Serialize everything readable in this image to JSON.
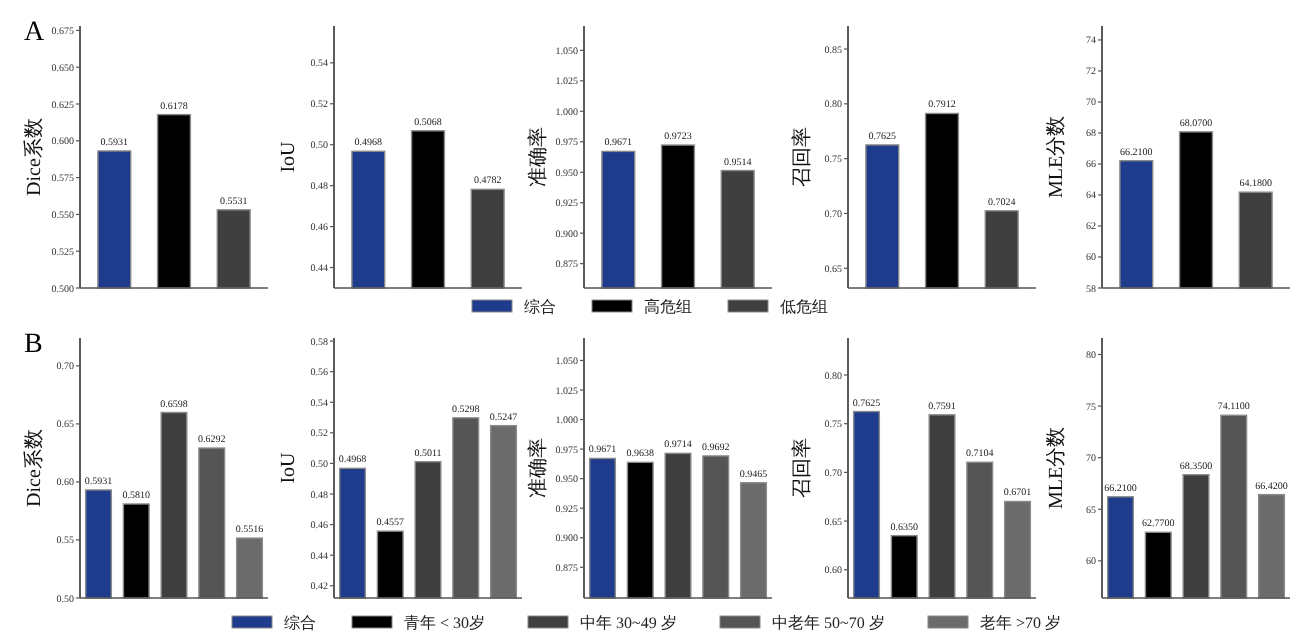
{
  "chart_data": [
    {
      "type": "bar",
      "title": "A",
      "ylabel": "Dice系数",
      "categories": [
        null
      ],
      "ylim": [
        0.5,
        0.678
      ],
      "yticks": [
        {
          "value": 0.5,
          "label": "0.500"
        },
        {
          "value": 0.525,
          "label": "0.525"
        },
        {
          "value": 0.55,
          "label": "0.550"
        },
        {
          "value": 0.575,
          "label": "0.575"
        },
        {
          "value": 0.6,
          "label": "0.600"
        },
        {
          "value": 0.625,
          "label": "0.625"
        },
        {
          "value": 0.65,
          "label": "0.650"
        },
        {
          "value": 0.675,
          "label": "0.675"
        }
      ],
      "series": [
        {
          "color": "#1f3b8c",
          "values": [
            0.5931
          ],
          "value_labels": [
            "0.5931"
          ]
        },
        {
          "color": "#000000",
          "values": [
            0.6178
          ],
          "value_labels": [
            "0.6178"
          ]
        },
        {
          "color": "#3f3f3f",
          "values": [
            0.5531
          ],
          "value_labels": [
            "0.5531"
          ]
        }
      ]
    },
    {
      "type": "bar",
      "ylabel": "IoU",
      "categories": [
        null
      ],
      "ylim": [
        0.43,
        0.558
      ],
      "yticks": [
        0.44,
        0.46,
        0.48,
        {
          "value": 0.5,
          "label": "0.50"
        },
        0.52,
        0.54
      ],
      "series": [
        {
          "color": "#1f3b8c",
          "values": [
            0.4968
          ],
          "value_labels": [
            "0.4968"
          ]
        },
        {
          "color": "#000000",
          "values": [
            0.5068
          ],
          "value_labels": [
            "0.5068"
          ]
        },
        {
          "color": "#3f3f3f",
          "values": [
            0.4782
          ],
          "value_labels": [
            "0.4782"
          ]
        }
      ]
    },
    {
      "type": "bar",
      "ylabel": "准确率",
      "categories": [
        null
      ],
      "legend": "bottom",
      "ylim": [
        0.855,
        1.07
      ],
      "yticks": [
        {
          "value": 0.875,
          "label": "0.875"
        },
        {
          "value": 0.9,
          "label": "0.900"
        },
        {
          "value": 0.925,
          "label": "0.925"
        },
        {
          "value": 0.95,
          "label": "0.950"
        },
        {
          "value": 0.975,
          "label": "0.975"
        },
        {
          "value": 1,
          "label": "1.000"
        },
        {
          "value": 1.025,
          "label": "1.025"
        },
        {
          "value": 1.05,
          "label": "1.050"
        }
      ],
      "series": [
        {
          "name": "综合",
          "color": "#1f3b8c",
          "values": [
            0.9671
          ],
          "value_labels": [
            "0.9671"
          ]
        },
        {
          "name": "高危组",
          "color": "#000000",
          "values": [
            0.9723
          ],
          "value_labels": [
            "0.9723"
          ]
        },
        {
          "name": "低危组",
          "color": "#3f3f3f",
          "values": [
            0.9514
          ],
          "value_labels": [
            "0.9514"
          ]
        }
      ]
    },
    {
      "type": "bar",
      "ylabel": "召回率",
      "categories": [
        null
      ],
      "ylim": [
        0.632,
        0.871
      ],
      "yticks": [
        0.65,
        {
          "value": 0.7,
          "label": "0.70"
        },
        0.75,
        {
          "value": 0.8,
          "label": "0.80"
        },
        0.85
      ],
      "series": [
        {
          "color": "#1f3b8c",
          "values": [
            0.7625
          ],
          "value_labels": [
            "0.7625"
          ]
        },
        {
          "color": "#000000",
          "values": [
            0.7912
          ],
          "value_labels": [
            "0.7912"
          ]
        },
        {
          "color": "#3f3f3f",
          "values": [
            0.7024
          ],
          "value_labels": [
            "0.7024"
          ]
        }
      ]
    },
    {
      "type": "bar",
      "ylabel": "MLE分数",
      "categories": [
        null
      ],
      "ylim": [
        58,
        74.9
      ],
      "yticks": [
        58,
        60,
        62,
        64,
        66,
        68,
        70,
        72,
        74
      ],
      "series": [
        {
          "color": "#1f3b8c",
          "values": [
            66.21
          ],
          "value_labels": [
            "66.2100"
          ]
        },
        {
          "color": "#000000",
          "values": [
            68.07
          ],
          "value_labels": [
            "68.0700"
          ]
        },
        {
          "color": "#3f3f3f",
          "values": [
            64.18
          ],
          "value_labels": [
            "64.1800"
          ]
        }
      ]
    },
    {
      "type": "bar",
      "title": "B",
      "ylabel": "Dice系数",
      "categories": [
        null
      ],
      "ylim": [
        0.5,
        0.724
      ],
      "yticks": [
        {
          "value": 0.5,
          "label": "0.50"
        },
        0.55,
        {
          "value": 0.6,
          "label": "0.60"
        },
        0.65,
        {
          "value": 0.7,
          "label": "0.70"
        }
      ],
      "series": [
        {
          "color": "#1f3b8c",
          "values": [
            0.5931
          ],
          "value_labels": [
            "0.5931"
          ]
        },
        {
          "color": "#000000",
          "values": [
            0.581
          ],
          "value_labels": [
            "0.5810"
          ]
        },
        {
          "color": "#3f3f3f",
          "values": [
            0.6598
          ],
          "value_labels": [
            "0.6598"
          ]
        },
        {
          "color": "#555555",
          "values": [
            0.6292
          ],
          "value_labels": [
            "0.6292"
          ]
        },
        {
          "color": "#6b6b6b",
          "values": [
            0.5516
          ],
          "value_labels": [
            "0.5516"
          ]
        }
      ]
    },
    {
      "type": "bar",
      "ylabel": "IoU",
      "categories": [
        null
      ],
      "ylim": [
        0.412,
        0.582
      ],
      "yticks": [
        0.42,
        0.44,
        0.46,
        0.48,
        {
          "value": 0.5,
          "label": "0.50"
        },
        0.52,
        0.54,
        0.56,
        0.58
      ],
      "series": [
        {
          "color": "#1f3b8c",
          "values": [
            0.4968
          ],
          "value_labels": [
            "0.4968"
          ]
        },
        {
          "color": "#000000",
          "values": [
            0.4557
          ],
          "value_labels": [
            "0.4557"
          ]
        },
        {
          "color": "#3f3f3f",
          "values": [
            0.5011
          ],
          "value_labels": [
            "0.5011"
          ]
        },
        {
          "color": "#555555",
          "values": [
            0.5298
          ],
          "value_labels": [
            "0.5298"
          ]
        },
        {
          "color": "#6b6b6b",
          "values": [
            0.5247
          ],
          "value_labels": [
            "0.5247"
          ]
        }
      ]
    },
    {
      "type": "bar",
      "ylabel": "准确率",
      "categories": [
        null
      ],
      "legend": "bottom",
      "ylim": [
        0.849,
        1.069
      ],
      "yticks": [
        {
          "value": 0.875,
          "label": "0.875"
        },
        {
          "value": 0.9,
          "label": "0.900"
        },
        {
          "value": 0.925,
          "label": "0.925"
        },
        {
          "value": 0.95,
          "label": "0.950"
        },
        {
          "value": 0.975,
          "label": "0.975"
        },
        {
          "value": 1,
          "label": "1.000"
        },
        {
          "value": 1.025,
          "label": "1.025"
        },
        {
          "value": 1.05,
          "label": "1.050"
        }
      ],
      "series": [
        {
          "name": "综合",
          "color": "#1f3b8c",
          "values": [
            0.9671
          ],
          "value_labels": [
            "0.9671"
          ]
        },
        {
          "name": "青年 < 30岁",
          "color": "#000000",
          "values": [
            0.9638
          ],
          "value_labels": [
            "0.9638"
          ]
        },
        {
          "name": "中年 30~49 岁",
          "color": "#3f3f3f",
          "values": [
            0.9714
          ],
          "value_labels": [
            "0.9714"
          ]
        },
        {
          "name": "中老年 50~70 岁",
          "color": "#555555",
          "values": [
            0.9692
          ],
          "value_labels": [
            "0.9692"
          ]
        },
        {
          "name": "老年 >70 岁",
          "color": "#6b6b6b",
          "values": [
            0.9465
          ],
          "value_labels": [
            "0.9465"
          ]
        }
      ]
    },
    {
      "type": "bar",
      "ylabel": "召回率",
      "categories": [
        null
      ],
      "ylim": [
        0.571,
        0.838
      ],
      "yticks": [
        {
          "value": 0.6,
          "label": "0.60"
        },
        0.65,
        {
          "value": 0.7,
          "label": "0.70"
        },
        0.75,
        {
          "value": 0.8,
          "label": "0.80"
        }
      ],
      "series": [
        {
          "color": "#1f3b8c",
          "values": [
            0.7625
          ],
          "value_labels": [
            "0.7625"
          ]
        },
        {
          "color": "#000000",
          "values": [
            0.635
          ],
          "value_labels": [
            "0.6350"
          ]
        },
        {
          "color": "#3f3f3f",
          "values": [
            0.7591
          ],
          "value_labels": [
            "0.7591"
          ]
        },
        {
          "color": "#555555",
          "values": [
            0.7104
          ],
          "value_labels": [
            "0.7104"
          ]
        },
        {
          "color": "#6b6b6b",
          "values": [
            0.6701
          ],
          "value_labels": [
            "0.6701"
          ]
        }
      ]
    },
    {
      "type": "bar",
      "ylabel": "MLE分数",
      "categories": [
        null
      ],
      "ylim": [
        56.4,
        81.6
      ],
      "yticks": [
        60,
        65,
        70,
        75,
        80
      ],
      "series": [
        {
          "color": "#1f3b8c",
          "values": [
            66.21
          ],
          "value_labels": [
            "66.2100"
          ]
        },
        {
          "color": "#000000",
          "values": [
            62.77
          ],
          "value_labels": [
            "62.7700"
          ]
        },
        {
          "color": "#3f3f3f",
          "values": [
            68.35
          ],
          "value_labels": [
            "68.3500"
          ]
        },
        {
          "color": "#555555",
          "values": [
            74.11
          ],
          "value_labels": [
            "74.1100"
          ]
        },
        {
          "color": "#6b6b6b",
          "values": [
            66.42
          ],
          "value_labels": [
            "66.4200"
          ]
        }
      ]
    }
  ]
}
